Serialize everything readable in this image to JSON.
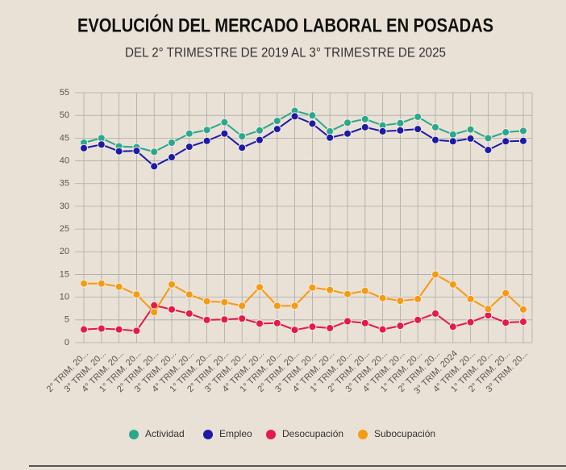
{
  "chart_data": {
    "type": "line",
    "title": "EVOLUCIÓN DEL MERCADO LABORAL EN POSADAS",
    "subtitle": "DEL 2° TRIMESTRE DE 2019 AL 3° TRIMESTRE DE 2025",
    "categories": [
      "2° TRIM. 20...",
      "3° TRIM. 20...",
      "4° TRIM. 20...",
      "1° TRIM. 20...",
      "2° TRIM. 20...",
      "3° TRIM. 20...",
      "4° TRIM. 20...",
      "1° TRIM. 20...",
      "2° TRIM. 20...",
      "3° TRIM. 20...",
      "4° TRIM. 20...",
      "1° TRIM. 20...",
      "2° TRIM. 20...",
      "3° TRIM. 20...",
      "4° TRIM. 20...",
      "1° TRIM. 20...",
      "2° TRIM. 20...",
      "3° TRIM. 20...",
      "4° TRIM. 20...",
      "1° TRIM. 20...",
      "2° TRIM. 20...",
      "3° TRIM. 2024",
      "4° TRIM. 20...",
      "1° TRIM. 20...",
      "2° TRIM. 20...",
      "3° TRIM. 20..."
    ],
    "series": [
      {
        "name": "Actividad",
        "color": "#2aa88e",
        "values": [
          44,
          45,
          43.2,
          43,
          42,
          44,
          46,
          46.8,
          48.5,
          45.4,
          46.7,
          48.8,
          51,
          50,
          46.5,
          48.4,
          49.2,
          47.8,
          48.3,
          49.7,
          47.4,
          45.8,
          46.9,
          45,
          46.3,
          46.6
        ]
      },
      {
        "name": "Empleo",
        "color": "#1c1aa6",
        "values": [
          42.8,
          43.6,
          42.1,
          42.2,
          38.8,
          40.8,
          43.1,
          44.4,
          46,
          42.9,
          44.6,
          47,
          49.8,
          48.2,
          45.1,
          46,
          47.4,
          46.5,
          46.7,
          47,
          44.6,
          44.3,
          44.9,
          42.4,
          44.3,
          44.4
        ]
      },
      {
        "name": "Desocupación",
        "color": "#e6194b",
        "values": [
          2.9,
          3.1,
          2.9,
          2.6,
          8.2,
          7.3,
          6.4,
          5,
          5.1,
          5.3,
          4.2,
          4.3,
          2.8,
          3.5,
          3.2,
          4.7,
          4.3,
          2.9,
          3.7,
          5,
          6.4,
          3.5,
          4.5,
          6,
          4.4,
          4.6
        ]
      },
      {
        "name": "Subocupación",
        "color": "#f59a12",
        "values": [
          13,
          13,
          12.3,
          10.6,
          6.7,
          12.8,
          10.6,
          9.1,
          8.9,
          8.1,
          12.2,
          8.1,
          8.1,
          12.1,
          11.6,
          10.7,
          11.4,
          9.8,
          9.2,
          9.6,
          15,
          12.8,
          9.6,
          7.4,
          10.9,
          7.3
        ]
      }
    ],
    "ylim": [
      0,
      55
    ],
    "yticks": [
      0,
      5,
      10,
      15,
      20,
      25,
      30,
      35,
      40,
      45,
      50,
      55
    ],
    "grid": true
  }
}
